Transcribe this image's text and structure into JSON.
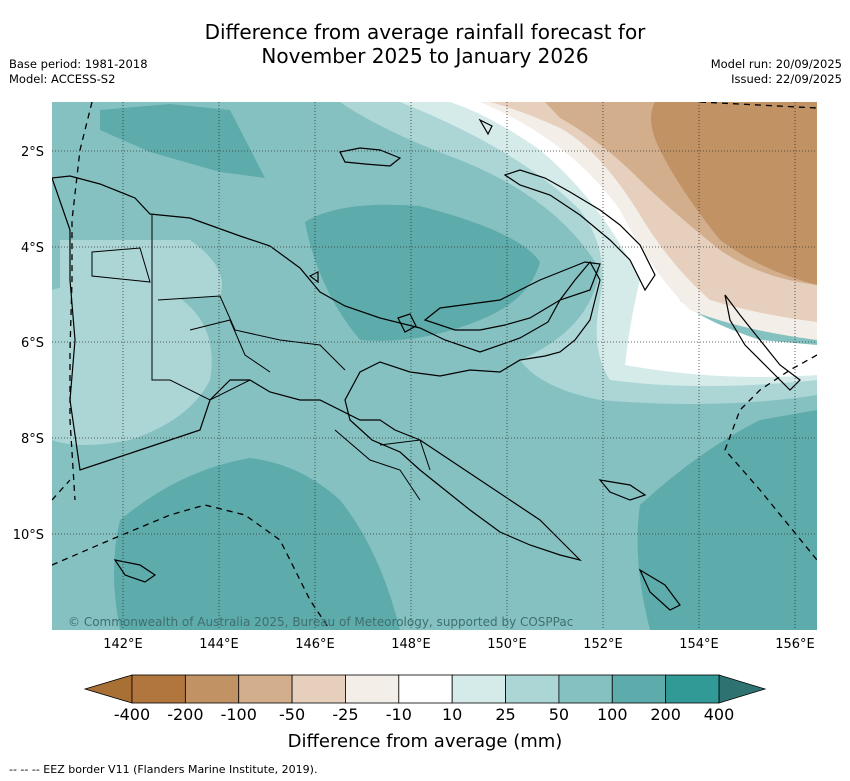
{
  "title_line1": "Difference from average rainfall forecast for",
  "title_line2": "November 2025 to January 2026",
  "base_period": "Base period: 1981-2018",
  "model": "Model: ACCESS-S2",
  "model_run": "Model run: 20/09/2025",
  "issued": "Issued: 22/09/2025",
  "lat_labels": [
    "2°S",
    "4°S",
    "6°S",
    "8°S",
    "10°S"
  ],
  "lon_labels": [
    "142°E",
    "144°E",
    "146°E",
    "148°E",
    "150°E",
    "152°E",
    "154°E",
    "156°E"
  ],
  "copyright": "© Commonwealth of Australia 2025, Bureau of Meteorology, supported by COSPPac",
  "colorbar": {
    "title": "Difference from average (mm)",
    "labels": [
      "-400",
      "-200",
      "-100",
      "-50",
      "-25",
      "-10",
      "10",
      "25",
      "50",
      "100",
      "200",
      "400"
    ],
    "colors": [
      "#a87035",
      "#b0763e",
      "#c19264",
      "#d2ae8c",
      "#e6d0bd",
      "#f3eee8",
      "#ffffff",
      "#d5ebea",
      "#acd6d6",
      "#86c1c2",
      "#5eabab",
      "#319996",
      "#2f7272"
    ]
  },
  "footer": "--  --  -- EEZ border V11 (Flanders Marine Institute, 2019)."
}
